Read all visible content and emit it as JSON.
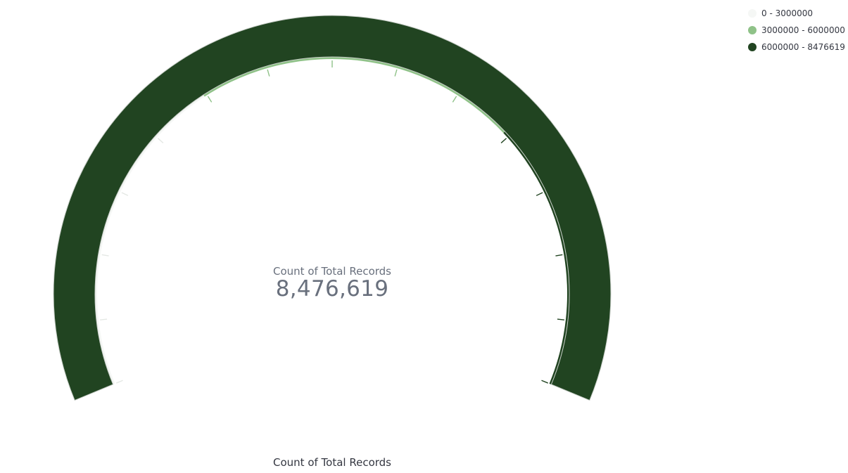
{
  "chart_data": {
    "type": "gauge",
    "subtype": "arc",
    "metric_label": "Count of Total Records",
    "value": 8476619,
    "value_display": "8,476,619",
    "title": "Count of Total Records",
    "range": [
      0,
      8476619
    ],
    "bands": [
      {
        "label": "0 - 3000000",
        "from": 0,
        "to": 3000000,
        "color": "#f5f7f5"
      },
      {
        "label": "3000000 - 6000000",
        "from": 3000000,
        "to": 6000000,
        "color": "#8fc288"
      },
      {
        "label": "6000000 - 8476619",
        "from": 6000000,
        "to": 8476619,
        "color": "#214421"
      }
    ],
    "legend_position": "top-right"
  }
}
